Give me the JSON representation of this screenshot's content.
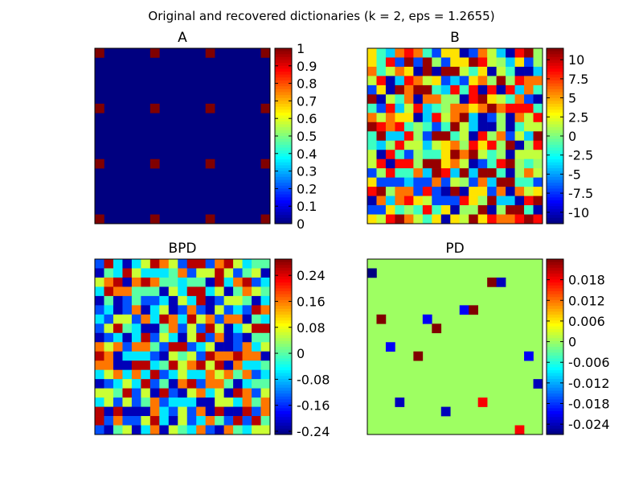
{
  "figure": {
    "title": "Original and recovered dictionaries (k = 2, eps = 1.2655)"
  },
  "chart_data": [
    {
      "type": "heatmap",
      "title": "A",
      "rows": 19,
      "cols": 19,
      "background_value": 0,
      "nonzero_cells": [
        [
          0,
          0
        ],
        [
          0,
          6
        ],
        [
          0,
          12
        ],
        [
          0,
          18
        ],
        [
          6,
          0
        ],
        [
          6,
          6
        ],
        [
          6,
          12
        ],
        [
          6,
          18
        ],
        [
          12,
          0
        ],
        [
          12,
          6
        ],
        [
          12,
          12
        ],
        [
          12,
          18
        ],
        [
          18,
          0
        ],
        [
          18,
          6
        ],
        [
          18,
          12
        ],
        [
          18,
          18
        ]
      ],
      "nonzero_value": 1,
      "colorbar": {
        "ticks": [
          1,
          0.9,
          0.8,
          0.7,
          0.6,
          0.5,
          0.4,
          0.3,
          0.2,
          0.1,
          0
        ],
        "min": 0,
        "max": 1
      }
    },
    {
      "type": "heatmap",
      "title": "B",
      "rows": 19,
      "cols": 19,
      "pattern": "random dense values",
      "colorbar": {
        "ticks": [
          10,
          7.5,
          5,
          2.5,
          0,
          -2.5,
          -5,
          -7.5,
          -10
        ],
        "min": -11.5,
        "max": 11.5
      }
    },
    {
      "type": "heatmap",
      "title": "BPD",
      "rows": 19,
      "cols": 19,
      "pattern": "random dense values",
      "colorbar": {
        "ticks": [
          0.24,
          0.16,
          0.08,
          0,
          -0.08,
          -0.16,
          -0.24
        ],
        "min": -0.25,
        "max": 0.29
      }
    },
    {
      "type": "heatmap",
      "title": "PD",
      "rows": 19,
      "cols": 19,
      "background_value": 0,
      "cells": [
        {
          "r": 1,
          "c": 0,
          "v": -0.027
        },
        {
          "r": 2,
          "c": 13,
          "v": 0.024
        },
        {
          "r": 2,
          "c": 14,
          "v": -0.024
        },
        {
          "r": 5,
          "c": 10,
          "v": -0.021
        },
        {
          "r": 5,
          "c": 11,
          "v": 0.024
        },
        {
          "r": 6,
          "c": 1,
          "v": 0.024
        },
        {
          "r": 6,
          "c": 6,
          "v": -0.021
        },
        {
          "r": 7,
          "c": 7,
          "v": 0.024
        },
        {
          "r": 9,
          "c": 2,
          "v": -0.021
        },
        {
          "r": 10,
          "c": 5,
          "v": 0.024
        },
        {
          "r": 10,
          "c": 17,
          "v": -0.021
        },
        {
          "r": 13,
          "c": 18,
          "v": -0.024
        },
        {
          "r": 15,
          "c": 3,
          "v": -0.024
        },
        {
          "r": 15,
          "c": 12,
          "v": 0.018
        },
        {
          "r": 16,
          "c": 8,
          "v": -0.024
        },
        {
          "r": 18,
          "c": 16,
          "v": 0.018
        }
      ],
      "colorbar": {
        "ticks": [
          0.018,
          0.012,
          0.006,
          0,
          -0.006,
          -0.012,
          -0.018,
          -0.024
        ],
        "min": -0.027,
        "max": 0.024
      }
    }
  ]
}
